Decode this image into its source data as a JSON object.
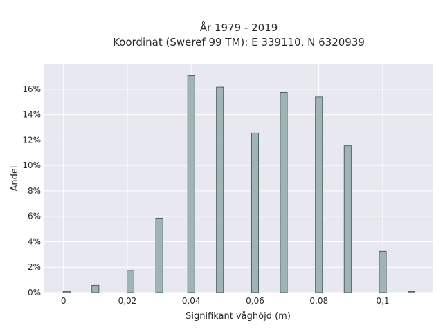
{
  "chart_data": {
    "type": "bar",
    "title_line1": "År 1979 - 2019",
    "title_line2": "Koordinat (Sweref 99 TM): E 339110, N 6320939",
    "xlabel": "Signifikant våghöjd (m)",
    "ylabel": "Andel",
    "xlim": [
      -0.006,
      0.1156
    ],
    "ylim": [
      0,
      0.1795
    ],
    "bar_width": 0.0022,
    "x": [
      0.001,
      0.01,
      0.021,
      0.03,
      0.04,
      0.049,
      0.06,
      0.069,
      0.08,
      0.089,
      0.1,
      0.109
    ],
    "values": [
      0.0008,
      0.0058,
      0.0175,
      0.0585,
      0.1705,
      0.1615,
      0.1255,
      0.1575,
      0.154,
      0.1155,
      0.0325,
      0.0008
    ],
    "x_ticks": [
      0,
      0.02,
      0.04,
      0.06,
      0.08,
      0.1
    ],
    "x_tick_labels": [
      "0",
      "0,02",
      "0,04",
      "0,06",
      "0,08",
      "0,1"
    ],
    "y_ticks": [
      0,
      0.02,
      0.04,
      0.06,
      0.08,
      0.1,
      0.12,
      0.14,
      0.16
    ],
    "y_tick_labels": [
      "0%",
      "2%",
      "4%",
      "6%",
      "8%",
      "10%",
      "12%",
      "14%",
      "16%"
    ],
    "grid": true,
    "colors": {
      "plot_background": "#e8e8f1",
      "grid": "#ffffff",
      "bar_fill": "#9fb5b5",
      "bar_stroke": "#3d4a4a"
    }
  }
}
